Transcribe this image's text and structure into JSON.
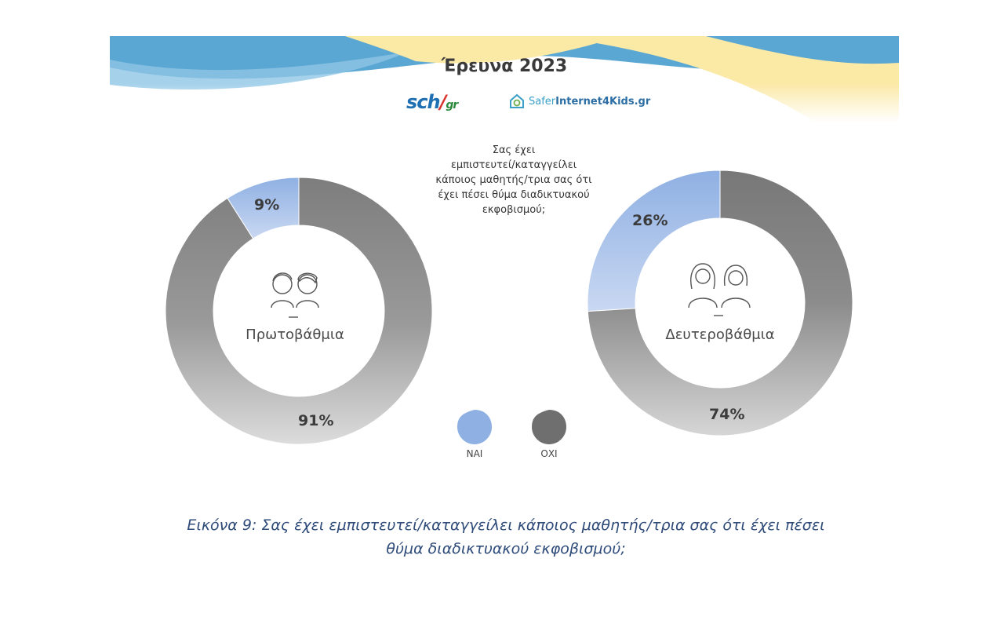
{
  "header": {
    "survey_title": "Έρευνα 2023",
    "logo_sch_main": "sch",
    "logo_sch_sub": "gr",
    "logo_safer_a": "Safer",
    "logo_safer_b": "Internet4Kids.gr"
  },
  "question": {
    "line1": "Σας έχει",
    "line2": "εμπιστευτεί/καταγγείλει",
    "line3": "κάποιος μαθητής/τρια σας ότι",
    "line4": "έχει πέσει θύμα διαδικτυακού",
    "line5": "εκφοβισμού;"
  },
  "colors": {
    "nai": "#8fb0e3",
    "nai_light": "#b9cdef",
    "oxi": "#7d7d7d",
    "oxi_light": "#c4c4c4",
    "banner_blue": "#5ba7d3",
    "banner_yellow": "#fbe9a6",
    "caption": "#2e4b7a"
  },
  "chart_data": [
    {
      "type": "pie",
      "center_label": "Πρωτοβάθμια",
      "icon": "children-icon",
      "slices": [
        {
          "label": "ΝΑΙ",
          "value": 9,
          "display": "9%"
        },
        {
          "label": "ΟΧΙ",
          "value": 91,
          "display": "91%"
        }
      ]
    },
    {
      "type": "pie",
      "center_label": "Δευτεροβάθμια",
      "icon": "teens-icon",
      "slices": [
        {
          "label": "ΝΑΙ",
          "value": 26,
          "display": "26%"
        },
        {
          "label": "ΟΧΙ",
          "value": 74,
          "display": "74%"
        }
      ]
    }
  ],
  "legend": {
    "nai": "ΝΑΙ",
    "oxi": "ΟΧΙ"
  },
  "caption": {
    "line1": "Εικόνα 9: Σας έχει εμπιστευτεί/καταγγείλει κάποιος μαθητής/τρια σας ότι έχει πέσει",
    "line2": "θύμα διαδικτυακού εκφοβισμού;"
  }
}
